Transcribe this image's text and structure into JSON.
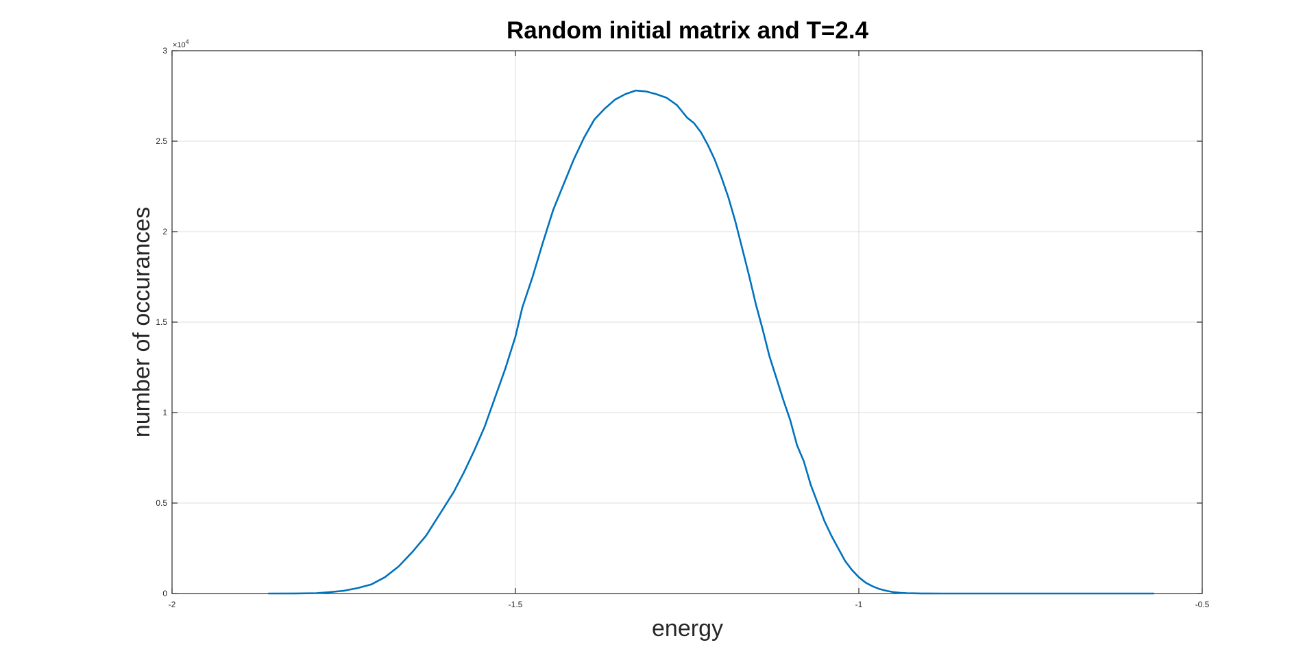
{
  "chart_data": {
    "type": "line",
    "title": "Random initial matrix and T=2.4",
    "xlabel": "energy",
    "ylabel": "number of occurances",
    "xlim": [
      -2,
      -0.5
    ],
    "ylim": [
      0,
      30000
    ],
    "y_exponent_label": "×10",
    "y_exponent_power": "4",
    "grid": true,
    "x_ticks": [
      -2,
      -1.5,
      -1,
      -0.5
    ],
    "x_tick_labels": [
      "-2",
      "-1.5",
      "-1",
      "-0.5"
    ],
    "y_ticks": [
      0,
      5000,
      10000,
      15000,
      20000,
      25000,
      30000
    ],
    "y_tick_labels": [
      "0",
      "0.5",
      "1",
      "1.5",
      "2",
      "2.5",
      "3"
    ],
    "line_color": "#0072BD",
    "series": [
      {
        "x": [
          -1.86,
          -1.82,
          -1.79,
          -1.77,
          -1.75,
          -1.73,
          -1.71,
          -1.69,
          -1.67,
          -1.65,
          -1.63,
          -1.61,
          -1.59,
          -1.575,
          -1.56,
          -1.545,
          -1.53,
          -1.515,
          -1.5,
          -1.49,
          -1.475,
          -1.46,
          -1.445,
          -1.43,
          -1.415,
          -1.4,
          -1.385,
          -1.37,
          -1.355,
          -1.34,
          -1.325,
          -1.31,
          -1.295,
          -1.28,
          -1.265,
          -1.25,
          -1.24,
          -1.23,
          -1.22,
          -1.21,
          -1.2,
          -1.19,
          -1.18,
          -1.17,
          -1.16,
          -1.15,
          -1.14,
          -1.13,
          -1.12,
          -1.11,
          -1.1,
          -1.09,
          -1.08,
          -1.07,
          -1.06,
          -1.05,
          -1.04,
          -1.03,
          -1.02,
          -1.01,
          -1.0,
          -0.99,
          -0.98,
          -0.97,
          -0.96,
          -0.95,
          -0.94,
          -0.93,
          -0.92,
          -0.91,
          -0.9,
          -0.88,
          -0.86,
          -0.84,
          -0.82,
          -0.8,
          -0.76,
          -0.7,
          -0.6,
          -0.57
        ],
        "y": [
          0,
          5,
          20,
          80,
          150,
          300,
          500,
          900,
          1500,
          2300,
          3200,
          4400,
          5600,
          6700,
          7900,
          9200,
          10800,
          12400,
          14200,
          15800,
          17500,
          19400,
          21200,
          22600,
          24000,
          25200,
          26200,
          26800,
          27300,
          27600,
          27800,
          27750,
          27600,
          27400,
          27000,
          26300,
          26000,
          25500,
          24800,
          24000,
          23000,
          21900,
          20600,
          19100,
          17600,
          16000,
          14600,
          13100,
          11900,
          10700,
          9600,
          8200,
          7300,
          6000,
          5000,
          4000,
          3200,
          2500,
          1800,
          1300,
          900,
          600,
          400,
          250,
          150,
          80,
          40,
          20,
          10,
          5,
          2,
          1,
          0,
          0,
          0,
          0,
          0,
          0,
          0,
          0
        ]
      }
    ]
  }
}
